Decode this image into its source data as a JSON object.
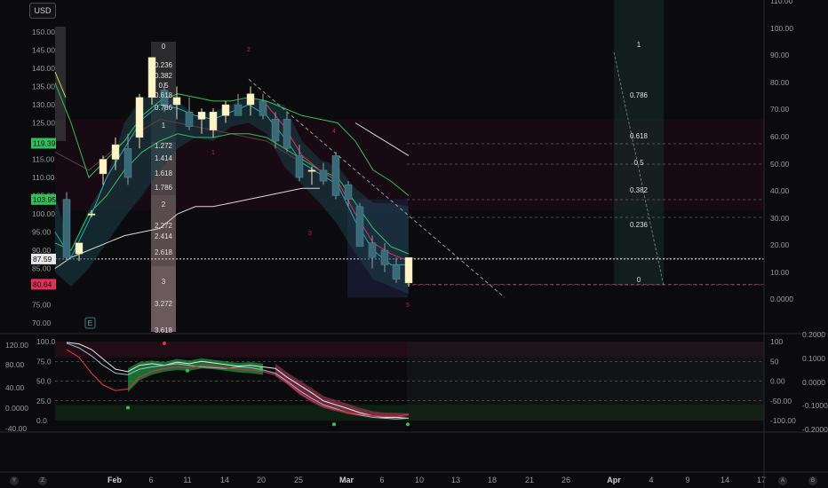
{
  "toolbar": {
    "currency": "USD"
  },
  "corner_buttons": {
    "left_y": "Y",
    "left_z": "Z",
    "right_a": "A",
    "right_b": "B"
  },
  "earnings_marker": "E",
  "colors": {
    "bull": "#fff5c8",
    "bear": "#f5f0d0",
    "green_line": "#2fc05a",
    "teal_line": "#26a9b0",
    "white_line": "#d8d8d8",
    "pink_line": "#e0305a",
    "fib_zone": "#1a3a3a",
    "box_purple": "#1c1c3a"
  },
  "chart_data": [
    {
      "type": "candlestick",
      "title": "",
      "price_axis_left": {
        "ticks": [
          "150.00",
          "145.00",
          "140.00",
          "135.00",
          "130.00",
          "125.00",
          "120.00",
          "115.00",
          "110.00",
          "105.00",
          "100.00",
          "95.00",
          "90.00",
          "85.00",
          "80.00",
          "75.00",
          "70.00"
        ],
        "range": [
          68,
          153
        ]
      },
      "price_axis_right": {
        "ticks": [
          "110.00",
          "100.00",
          "90.00",
          "80.00",
          "70.00",
          "60.00",
          "50.00",
          "40.00",
          "30.00",
          "20.00",
          "10.00",
          "0.0000"
        ]
      },
      "price_tags": [
        {
          "value": "119.39",
          "color": "#2fc05a",
          "price": 119.39
        },
        {
          "value": "103.95",
          "color": "#2fc05a",
          "price": 103.95
        },
        {
          "value": "87.59",
          "color": "#e8e8e8",
          "price": 87.59
        },
        {
          "value": "80.64",
          "color": "#e0305a",
          "price": 80.64
        }
      ],
      "x_ticks": [
        "Feb",
        "6",
        "11",
        "14",
        "20",
        "25",
        "Mar",
        "6",
        "10",
        "13",
        "18",
        "21",
        "26",
        "Apr",
        "4",
        "9",
        "14",
        "17"
      ],
      "x_tick_bold": [
        "Feb",
        "Mar",
        "Apr"
      ],
      "x_tick_positions": [
        129,
        170,
        211,
        253,
        294,
        336,
        390,
        430,
        472,
        513,
        554,
        596,
        637,
        691,
        733,
        774,
        816,
        857
      ],
      "candles": [
        {
          "x": 75,
          "o": 104,
          "h": 106,
          "l": 87,
          "c": 88
        },
        {
          "x": 89,
          "o": 89,
          "h": 92,
          "l": 87,
          "c": 92
        },
        {
          "x": 103,
          "o": 100,
          "h": 101,
          "l": 99,
          "c": 100
        },
        {
          "x": 116,
          "o": 111,
          "h": 116,
          "l": 108,
          "c": 115
        },
        {
          "x": 130,
          "o": 115,
          "h": 121,
          "l": 112,
          "c": 119
        },
        {
          "x": 144,
          "o": 118,
          "h": 122,
          "l": 108,
          "c": 110
        },
        {
          "x": 157,
          "o": 121,
          "h": 133,
          "l": 118,
          "c": 132
        },
        {
          "x": 171,
          "o": 132,
          "h": 143,
          "l": 130,
          "c": 143
        },
        {
          "x": 185,
          "o": 134,
          "h": 136,
          "l": 128,
          "c": 130
        },
        {
          "x": 199,
          "o": 130,
          "h": 135,
          "l": 126,
          "c": 132
        },
        {
          "x": 213,
          "o": 128,
          "h": 132,
          "l": 123,
          "c": 124
        },
        {
          "x": 227,
          "o": 126,
          "h": 129,
          "l": 122,
          "c": 128
        },
        {
          "x": 240,
          "o": 123,
          "h": 129,
          "l": 121,
          "c": 128
        },
        {
          "x": 254,
          "o": 127,
          "h": 131,
          "l": 125,
          "c": 130
        },
        {
          "x": 268,
          "o": 130,
          "h": 133,
          "l": 127,
          "c": 127
        },
        {
          "x": 282,
          "o": 130,
          "h": 135,
          "l": 127,
          "c": 133
        },
        {
          "x": 296,
          "o": 131,
          "h": 133,
          "l": 126,
          "c": 127
        },
        {
          "x": 310,
          "o": 126,
          "h": 128,
          "l": 118,
          "c": 120
        },
        {
          "x": 323,
          "o": 126,
          "h": 128,
          "l": 117,
          "c": 118
        },
        {
          "x": 337,
          "o": 116,
          "h": 119,
          "l": 109,
          "c": 110
        },
        {
          "x": 351,
          "o": 112,
          "h": 113,
          "l": 108,
          "c": 112
        },
        {
          "x": 364,
          "o": 112,
          "h": 114,
          "l": 108,
          "c": 109
        },
        {
          "x": 378,
          "o": 116,
          "h": 117,
          "l": 104,
          "c": 105
        },
        {
          "x": 392,
          "o": 108,
          "h": 109,
          "l": 102,
          "c": 104
        },
        {
          "x": 405,
          "o": 102,
          "h": 103,
          "l": 91,
          "c": 91
        },
        {
          "x": 419,
          "o": 92,
          "h": 94,
          "l": 85,
          "c": 88
        },
        {
          "x": 433,
          "o": 90,
          "h": 92,
          "l": 84,
          "c": 86
        },
        {
          "x": 446,
          "o": 86,
          "h": 88,
          "l": 81,
          "c": 82
        },
        {
          "x": 460,
          "o": 81,
          "h": 88,
          "l": 80,
          "c": 88
        }
      ],
      "fib_extension_labels": [
        "0",
        "0.236",
        "0.382",
        "0.5",
        "0.618",
        "0.786",
        "1",
        "1.272",
        "1.414",
        "1.618",
        "1.786",
        "2",
        "2.272",
        "2.414",
        "2.618",
        "3",
        "3.272",
        "3.618"
      ],
      "fib_retracement_labels": [
        "1",
        "0.786",
        "0.618",
        "0.5",
        "0.382",
        "0.236",
        "0"
      ],
      "wave_labels": [
        "1",
        "2",
        "3",
        "4",
        "5"
      ]
    },
    {
      "type": "line",
      "title": "",
      "left_axis_ticks": [
        "120.00",
        "80.00",
        "40.00",
        "0.0000",
        "-40.00"
      ],
      "inner_axis_ticks": [
        "100.0",
        "75.0",
        "50.0",
        "25.0",
        "0.0"
      ],
      "right_axis_ticks": [
        "100",
        "50",
        "0.00",
        "-50.00",
        "-100.00"
      ],
      "far_right_ticks": [
        "0.2000",
        "0.1000",
        "0.0000",
        "-0.1000",
        "-0.2000"
      ],
      "series": [
        {
          "color": "#e8e8e8",
          "values": [
            99,
            97,
            90,
            78,
            65,
            62,
            70,
            72,
            70,
            74,
            72,
            75,
            73,
            71,
            69,
            70,
            68,
            66,
            55,
            45,
            35,
            25,
            20,
            15,
            10,
            6,
            4,
            4,
            3
          ]
        },
        {
          "color": "#9ac0d0",
          "values": [
            98,
            92,
            82,
            70,
            60,
            58,
            65,
            68,
            70,
            72,
            70,
            68,
            67,
            66,
            68,
            67,
            64,
            60,
            50,
            38,
            28,
            20,
            15,
            10,
            7,
            4,
            3,
            2,
            3
          ]
        },
        {
          "color": "#d03050",
          "values": [
            90,
            80,
            60,
            45,
            38,
            40,
            55,
            62,
            66,
            68,
            67,
            70,
            69,
            67,
            65,
            64,
            62,
            58,
            48,
            35,
            25,
            18,
            14,
            10,
            8,
            6,
            5,
            5,
            8
          ]
        }
      ]
    }
  ]
}
